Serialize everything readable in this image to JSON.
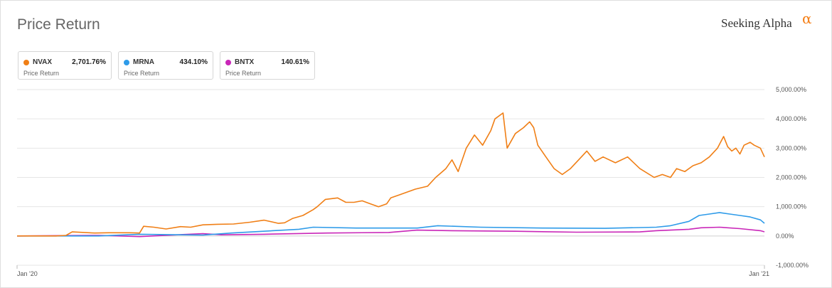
{
  "header": {
    "title": "Price Return",
    "brand": "Seeking Alpha",
    "brand_mark": "α"
  },
  "legend": [
    {
      "ticker": "NVAX",
      "value": "2,701.76%",
      "sub": "Price Return",
      "color": "#f07f16"
    },
    {
      "ticker": "MRNA",
      "value": "434.10%",
      "sub": "Price Return",
      "color": "#2e9be9"
    },
    {
      "ticker": "BNTX",
      "value": "140.61%",
      "sub": "Price Return",
      "color": "#c926b8"
    }
  ],
  "chart_data": {
    "type": "line",
    "y_ticks": [
      "5,000.00%",
      "4,000.00%",
      "3,000.00%",
      "2,000.00%",
      "1,000.00%",
      "0.00%",
      "-1,000.00%"
    ],
    "y_tick_values": [
      5000,
      4000,
      3000,
      2000,
      1000,
      0,
      -1000
    ],
    "ylim": [
      -1000,
      5000
    ],
    "x_ticks": [
      "Jan '20",
      "Jan '21"
    ],
    "xlim": [
      "2020-01-01",
      "2021-01-01"
    ],
    "grid": true,
    "series": [
      {
        "name": "NVAX",
        "color": "#f07f16",
        "x": [
          "2020-01-01",
          "2020-01-20",
          "2020-01-25",
          "2020-01-28",
          "2020-02-08",
          "2020-02-15",
          "2020-02-25",
          "2020-03-01",
          "2020-03-03",
          "2020-03-08",
          "2020-03-14",
          "2020-03-21",
          "2020-03-26",
          "2020-04-01",
          "2020-04-08",
          "2020-04-16",
          "2020-04-24",
          "2020-05-01",
          "2020-05-08",
          "2020-05-11",
          "2020-05-15",
          "2020-05-20",
          "2020-05-25",
          "2020-05-27",
          "2020-05-31",
          "2020-06-06",
          "2020-06-10",
          "2020-06-14",
          "2020-06-18",
          "2020-06-22",
          "2020-06-26",
          "2020-06-30",
          "2020-07-02",
          "2020-07-06",
          "2020-07-10",
          "2020-07-14",
          "2020-07-20",
          "2020-07-24",
          "2020-07-29",
          "2020-08-01",
          "2020-08-04",
          "2020-08-08",
          "2020-08-12",
          "2020-08-16",
          "2020-08-20",
          "2020-08-22",
          "2020-08-26",
          "2020-08-28",
          "2020-09-01",
          "2020-09-05",
          "2020-09-08",
          "2020-09-10",
          "2020-09-12",
          "2020-09-16",
          "2020-09-20",
          "2020-09-24",
          "2020-09-28",
          "2020-10-02",
          "2020-10-06",
          "2020-10-10",
          "2020-10-14",
          "2020-10-20",
          "2020-10-26",
          "2020-11-01",
          "2020-11-08",
          "2020-11-12",
          "2020-11-16",
          "2020-11-19",
          "2020-11-23",
          "2020-11-27",
          "2020-12-01",
          "2020-12-05",
          "2020-12-09",
          "2020-12-12",
          "2020-12-14",
          "2020-12-16",
          "2020-12-18",
          "2020-12-20",
          "2020-12-22",
          "2020-12-25",
          "2020-12-27",
          "2020-12-30",
          "2021-01-01"
        ],
        "values": [
          0,
          0,
          20,
          140,
          100,
          110,
          110,
          100,
          330,
          300,
          240,
          320,
          300,
          380,
          400,
          410,
          470,
          540,
          430,
          450,
          600,
          700,
          900,
          1000,
          1250,
          1300,
          1150,
          1150,
          1200,
          1100,
          1000,
          1100,
          1300,
          1400,
          1500,
          1600,
          1700,
          2000,
          2300,
          2600,
          2200,
          3000,
          3450,
          3100,
          3600,
          4000,
          4200,
          3000,
          3500,
          3700,
          3900,
          3700,
          3100,
          2700,
          2300,
          2100,
          2300,
          2600,
          2900,
          2550,
          2700,
          2500,
          2700,
          2300,
          2000,
          2100,
          2000,
          2300,
          2200,
          2400,
          2500,
          2700,
          3000,
          3400,
          3050,
          2900,
          3000,
          2800,
          3100,
          3200,
          3100,
          3000,
          2700
        ]
      },
      {
        "name": "MRNA",
        "color": "#2e9be9",
        "x": [
          "2020-01-01",
          "2020-02-10",
          "2020-03-01",
          "2020-04-01",
          "2020-04-15",
          "2020-05-18",
          "2020-05-25",
          "2020-06-15",
          "2020-07-15",
          "2020-07-25",
          "2020-08-15",
          "2020-09-15",
          "2020-10-15",
          "2020-11-09",
          "2020-11-16",
          "2020-11-25",
          "2020-11-30",
          "2020-12-05",
          "2020-12-10",
          "2020-12-15",
          "2020-12-20",
          "2020-12-25",
          "2020-12-30",
          "2021-01-01"
        ],
        "values": [
          0,
          0,
          60,
          30,
          100,
          230,
          300,
          270,
          270,
          350,
          300,
          270,
          260,
          300,
          350,
          500,
          700,
          750,
          800,
          750,
          700,
          650,
          550,
          434
        ]
      },
      {
        "name": "BNTX",
        "color": "#c926b8",
        "x": [
          "2020-01-01",
          "2020-02-10",
          "2020-03-01",
          "2020-04-01",
          "2020-04-10",
          "2020-05-01",
          "2020-06-01",
          "2020-07-01",
          "2020-07-15",
          "2020-08-01",
          "2020-09-01",
          "2020-10-01",
          "2020-11-01",
          "2020-11-09",
          "2020-11-25",
          "2020-12-01",
          "2020-12-10",
          "2020-12-20",
          "2020-12-30",
          "2021-01-01"
        ],
        "values": [
          0,
          20,
          -20,
          80,
          40,
          60,
          100,
          120,
          200,
          180,
          160,
          130,
          140,
          180,
          230,
          280,
          300,
          250,
          180,
          141
        ]
      }
    ]
  }
}
